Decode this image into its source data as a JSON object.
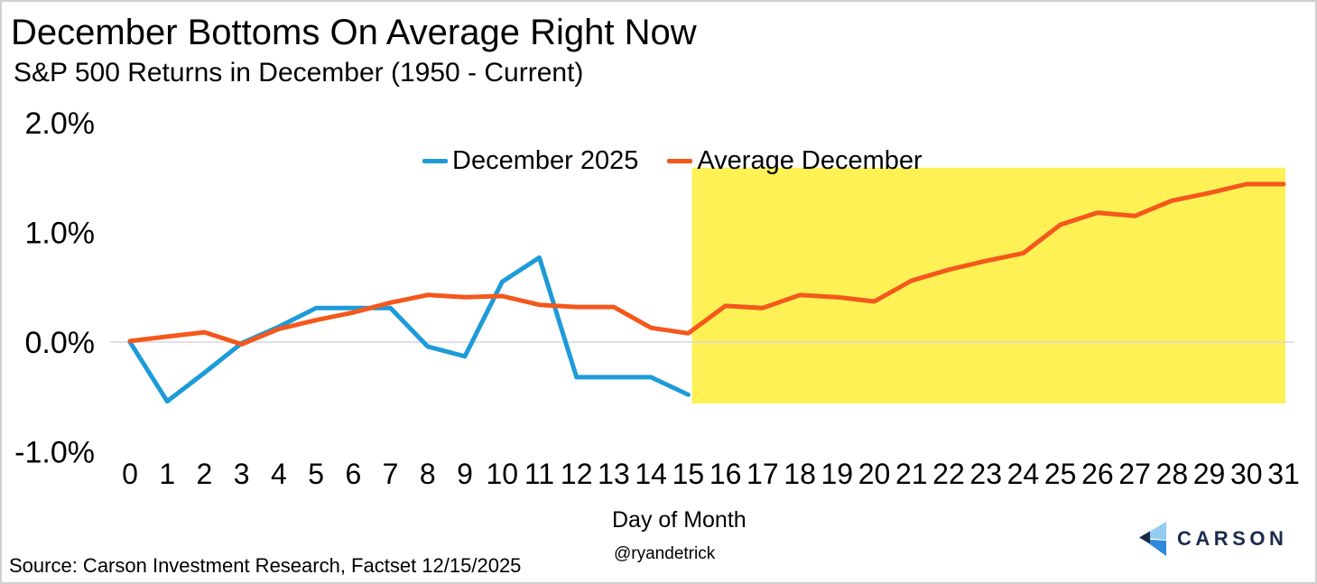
{
  "header": {
    "title": "December Bottoms On Average Right Now",
    "subtitle": "S&P 500 Returns in December (1950 - Current)"
  },
  "chart_data": {
    "type": "line",
    "title": "December Bottoms On Average Right Now",
    "subtitle": "S&P 500 Returns in December (1950 - Current)",
    "xlabel": "Day of Month",
    "ylabel": "",
    "x_ticks": [
      0,
      1,
      2,
      3,
      4,
      5,
      6,
      7,
      8,
      9,
      10,
      11,
      12,
      13,
      14,
      15,
      16,
      17,
      18,
      19,
      20,
      21,
      22,
      23,
      24,
      25,
      26,
      27,
      28,
      29,
      30,
      31
    ],
    "y_ticks": [
      {
        "label": "2.0%",
        "value": 2.0
      },
      {
        "label": "1.0%",
        "value": 1.0
      },
      {
        "label": "0.0%",
        "value": 0.0
      },
      {
        "label": "-1.0%",
        "value": -1.0
      }
    ],
    "xlim": [
      -0.5,
      31.5
    ],
    "ylim": [
      -1.3,
      2.15
    ],
    "grid": "horizontal-zero-line-only",
    "gridline_values": [
      0
    ],
    "gridline_color": "#d9d9d9",
    "legend_position": "top-center",
    "series": [
      {
        "name": "December 2025",
        "color": "#1d9bd8",
        "x": [
          0,
          1,
          2,
          3,
          4,
          5,
          6,
          7,
          8,
          9,
          10,
          11,
          12,
          13,
          14,
          15
        ],
        "values": [
          0.0,
          -0.54,
          -0.28,
          -0.01,
          0.14,
          0.31,
          0.31,
          0.31,
          -0.04,
          -0.13,
          0.55,
          0.77,
          -0.32,
          -0.32,
          -0.32,
          -0.48
        ]
      },
      {
        "name": "Average December",
        "color": "#f4581c",
        "x": [
          0,
          1,
          2,
          3,
          4,
          5,
          6,
          7,
          8,
          9,
          10,
          11,
          12,
          13,
          14,
          15,
          16,
          17,
          18,
          19,
          20,
          21,
          22,
          23,
          24,
          25,
          26,
          27,
          28,
          29,
          30,
          31
        ],
        "values": [
          0.01,
          0.05,
          0.09,
          -0.02,
          0.12,
          0.2,
          0.27,
          0.36,
          0.43,
          0.41,
          0.42,
          0.34,
          0.32,
          0.32,
          0.13,
          0.08,
          0.33,
          0.31,
          0.43,
          0.41,
          0.37,
          0.56,
          0.66,
          0.74,
          0.81,
          1.07,
          1.18,
          1.15,
          1.29,
          1.36,
          1.44,
          1.44
        ]
      }
    ],
    "highlight_region": {
      "color": "#fdf155",
      "x_start": 15.1,
      "x_end": 31.05,
      "y_top": 1.59,
      "y_bottom": -0.56
    }
  },
  "footer": {
    "source": "Source: Carson Investment Research, Factset 12/15/2025",
    "handle": "@ryandetrick",
    "brand": "CARSON"
  }
}
